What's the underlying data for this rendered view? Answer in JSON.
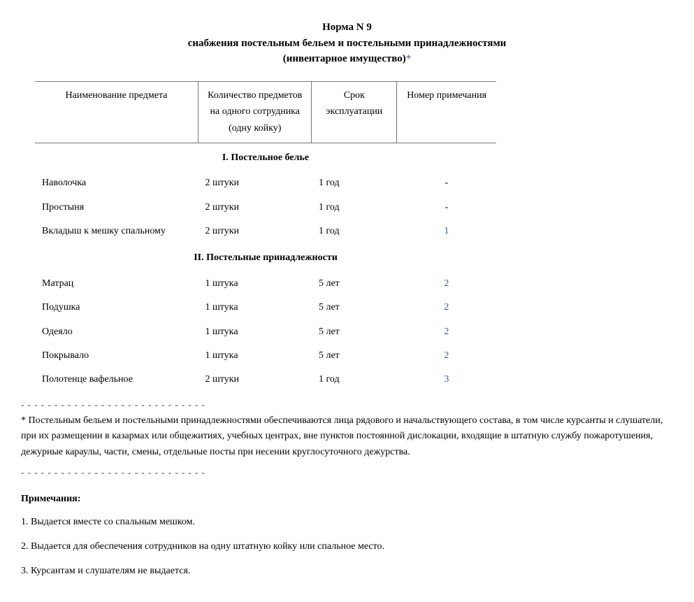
{
  "title": {
    "line1": "Норма N 9",
    "line2": "снабжения постельным бельем и постельными принадлежностями",
    "line3": "(инвентарное имущество)",
    "asterisk": "*"
  },
  "table": {
    "headers": {
      "name": "Наименование предмета",
      "qty": "Количество предметов на одного сотрудника (одну койку)",
      "term": "Срок эксплуатации",
      "note": "Номер примечания"
    },
    "section1": {
      "title": "I. Постельное белье",
      "rows": [
        {
          "name": "Наволочка",
          "qty": "2 штуки",
          "term": "1 год",
          "note": "-"
        },
        {
          "name": "Простыня",
          "qty": "2 штуки",
          "term": "1 год",
          "note": "-"
        },
        {
          "name": "Вкладыш к мешку спальному",
          "qty": "2 штуки",
          "term": "1 год",
          "note": "1"
        }
      ]
    },
    "section2": {
      "title": "II. Постельные принадлежности",
      "rows": [
        {
          "name": "Матрац",
          "qty": "1 штука",
          "term": "5 лет",
          "note": "2"
        },
        {
          "name": "Подушка",
          "qty": "1 штука",
          "term": "5 лет",
          "note": "2"
        },
        {
          "name": "Одеяло",
          "qty": "1 штука",
          "term": "5 лет",
          "note": "2"
        },
        {
          "name": "Покрывало",
          "qty": "1 штука",
          "term": "5 лет",
          "note": "2"
        },
        {
          "name": "Полотенце вафельное",
          "qty": "2 штуки",
          "term": "1 год",
          "note": "3"
        }
      ]
    }
  },
  "dash_line": "- - - - - - - - - - - - - - - - - - - - - - - - - - - -",
  "footnote": "* Постельным бельем и постельными принадлежностями обеспечиваются лица рядового и начальствующего состава, в том числе курсанты и слушатели, при их размещении в казармах или общежитиях, учебных центрах, вне пунктов постоянной дислокации, входящие в штатную службу пожаротушения, дежурные караулы, части, смены, отдельные посты при несении круглосуточного дежурства.",
  "notes": {
    "heading": "Примечания:",
    "items": [
      "1. Выдается вместе со спальным мешком.",
      "2. Выдается для обеспечения сотрудников на одну штатную койку или спальное место.",
      "3. Курсантам и слушателям не выдается."
    ]
  },
  "style": {
    "link_color": "#3b5998",
    "text_color": "#000000",
    "border_color": "#777777",
    "font_family": "Times New Roman",
    "base_font_size": 14
  }
}
